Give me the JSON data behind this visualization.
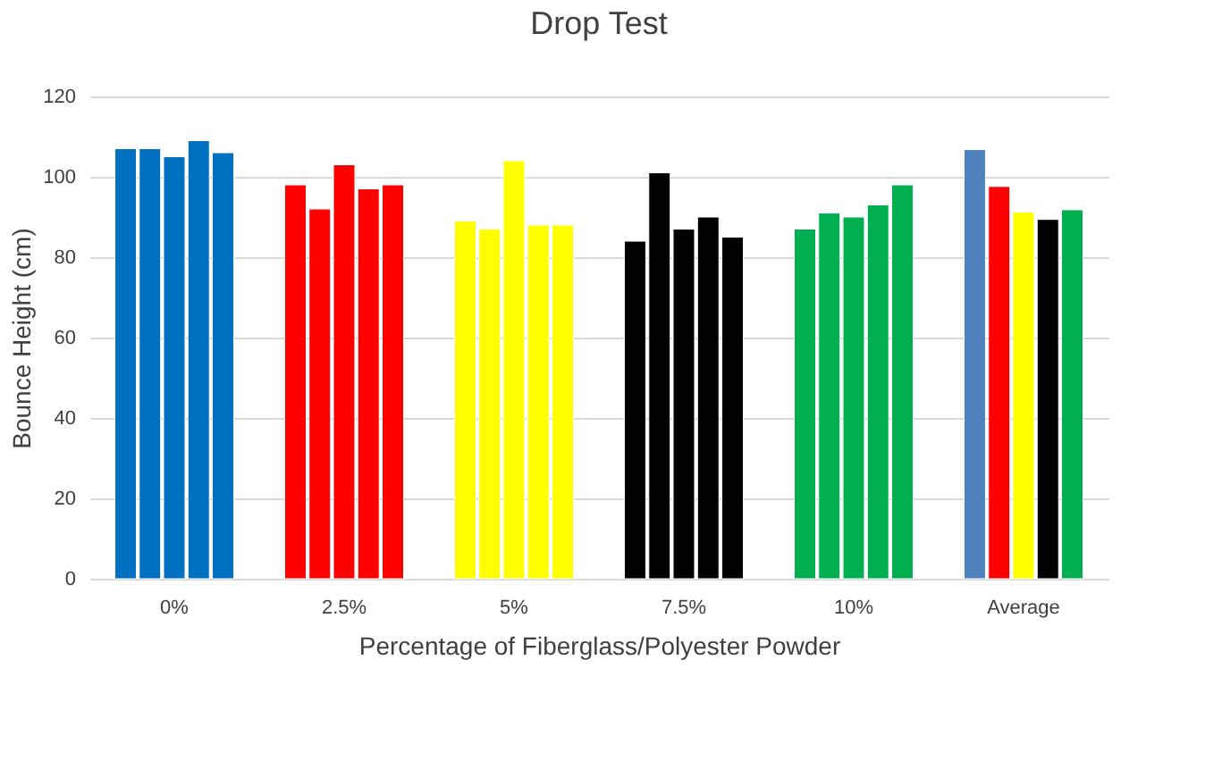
{
  "chart_data": {
    "type": "bar",
    "title": "Drop Test",
    "xlabel": "Percentage of Fiberglass/Polyester Powder",
    "ylabel": "Bounce Height (cm)",
    "categories": [
      "0%",
      "2.5%",
      "5%",
      "7.5%",
      "10%",
      "Average"
    ],
    "series": [
      {
        "values": [
          107,
          98,
          89,
          84,
          87,
          106.8
        ],
        "colors": [
          "#0070c0",
          "#ff0000",
          "#ffff00",
          "#000000",
          "#00b050",
          "#4f81bd"
        ]
      },
      {
        "values": [
          107,
          92,
          87,
          101,
          91,
          97.6
        ],
        "colors": [
          "#0070c0",
          "#ff0000",
          "#ffff00",
          "#000000",
          "#00b050",
          "#ff0000"
        ]
      },
      {
        "values": [
          105,
          103,
          104,
          87,
          90,
          91.2
        ],
        "colors": [
          "#0070c0",
          "#ff0000",
          "#ffff00",
          "#000000",
          "#00b050",
          "#ffff00"
        ]
      },
      {
        "values": [
          109,
          97,
          88,
          90,
          93,
          89.4
        ],
        "colors": [
          "#0070c0",
          "#ff0000",
          "#ffff00",
          "#000000",
          "#00b050",
          "#000000"
        ]
      },
      {
        "values": [
          106,
          98,
          88,
          85,
          98,
          91.8
        ],
        "colors": [
          "#0070c0",
          "#ff0000",
          "#ffff00",
          "#000000",
          "#00b050",
          "#00b050"
        ]
      }
    ],
    "ylim": [
      0,
      120
    ],
    "yticks": [
      0,
      20,
      40,
      60,
      80,
      100,
      120
    ],
    "grid": "y"
  }
}
